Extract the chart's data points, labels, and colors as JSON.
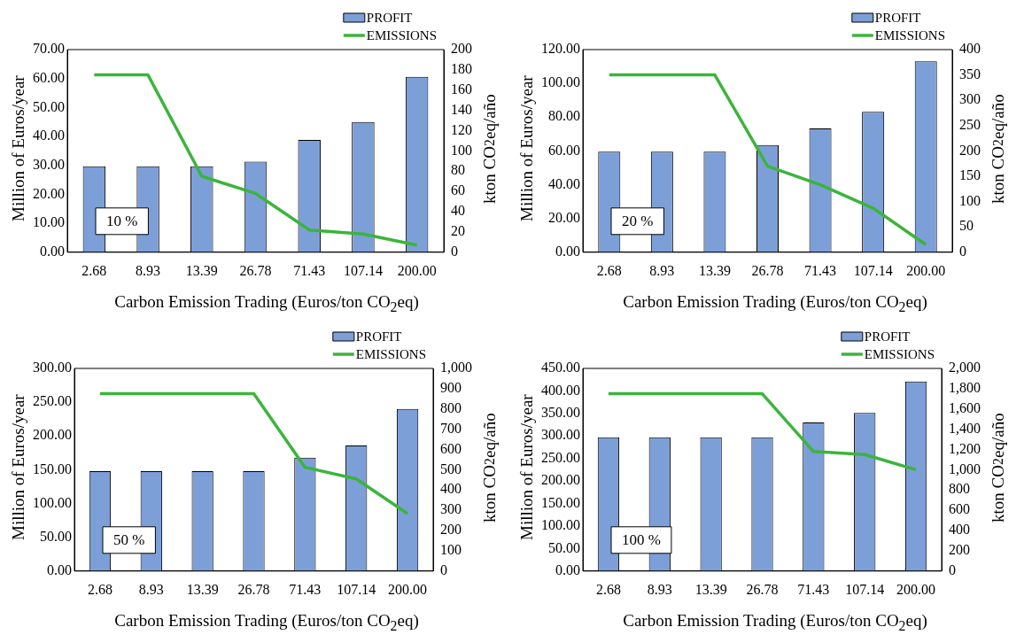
{
  "chart_data": [
    {
      "type": "bar",
      "categories": [
        "2.68",
        "8.93",
        "13.39",
        "26.78",
        "71.43",
        "107.14",
        "200.00"
      ],
      "xlabel": "Carbon Emission Trading (Euros/ton CO$_{2}$eq)",
      "ylabel": "Million of Euros/year",
      "y2label": "kton CO$_{2}$eq/año",
      "annotations": [
        "10 %"
      ],
      "series": [
        {
          "name": "PROFIT",
          "color": "#7d9fd8",
          "values": [
            29.7,
            29.7,
            29.7,
            31.3,
            38.8,
            45.0,
            60.6
          ]
        },
        {
          "name": "EMISSIONS",
          "type": "line",
          "axis": "y2",
          "color": "#3cb43c",
          "values": [
            175,
            175,
            75,
            58,
            22,
            18,
            7
          ]
        }
      ],
      "ylim": [
        0,
        70
      ],
      "yticks": [
        {
          "value": 0,
          "label": "0.00"
        },
        {
          "value": 10,
          "label": "10.00"
        },
        {
          "value": 20,
          "label": "20.00"
        },
        {
          "value": 30,
          "label": "30.00"
        },
        {
          "value": 40,
          "label": "40.00"
        },
        {
          "value": 50,
          "label": "50.00"
        },
        {
          "value": 60,
          "label": "60.00"
        },
        {
          "value": 70,
          "label": "70.00"
        }
      ],
      "y2lim": [
        0,
        200
      ],
      "y2ticks": [
        0,
        20,
        40,
        60,
        80,
        100,
        120,
        140,
        160,
        180,
        200
      ],
      "grid": false,
      "legend": "top right"
    },
    {
      "type": "bar",
      "categories": [
        "2.68",
        "8.93",
        "13.39",
        "26.78",
        "71.43",
        "107.14",
        "200.00"
      ],
      "xlabel": "Carbon Emission Trading (Euros/ton CO$_{2}$eq)",
      "ylabel": "Million of Euros/year",
      "y2label": "kton CO$^{2}$eq/año",
      "annotations": [
        "20 %"
      ],
      "series": [
        {
          "name": "PROFIT",
          "color": "#7d9fd8",
          "values": [
            59.5,
            59.5,
            59.5,
            63.5,
            73.3,
            83.2,
            113.0
          ]
        },
        {
          "name": "EMISSIONS",
          "type": "line",
          "axis": "y2",
          "color": "#3cb43c",
          "values": [
            350,
            350,
            350,
            170,
            133,
            87,
            15
          ]
        }
      ],
      "ylim": [
        0,
        120
      ],
      "yticks": [
        {
          "value": 0,
          "label": "0.00"
        },
        {
          "value": 20,
          "label": "20.00"
        },
        {
          "value": 40,
          "label": "40.00"
        },
        {
          "value": 60,
          "label": "60.00"
        },
        {
          "value": 80,
          "label": "80.00"
        },
        {
          "value": 100,
          "label": "100.00"
        },
        {
          "value": 120,
          "label": "120.00"
        }
      ],
      "y2lim": [
        0,
        400
      ],
      "y2ticks": [
        0,
        50,
        100,
        150,
        200,
        250,
        300,
        350,
        400
      ],
      "grid": false,
      "legend": "top right"
    },
    {
      "type": "bar",
      "categories": [
        "2.68",
        "8.93",
        "13.39",
        "26.78",
        "71.43",
        "107.14",
        "200.00"
      ],
      "xlabel": "Carbon Emission Trading (Euros/ton CO$_{2}$eq)",
      "ylabel": "Million of Euros/year",
      "y2label": "kton CO$_{2}$eq/año",
      "annotations": [
        "50 %"
      ],
      "series": [
        {
          "name": "PROFIT",
          "color": "#7d9fd8",
          "values": [
            148,
            148,
            148,
            148,
            168,
            186,
            240
          ]
        },
        {
          "name": "EMISSIONS",
          "type": "line",
          "axis": "y2",
          "color": "#3cb43c",
          "values": [
            875,
            875,
            875,
            875,
            512,
            455,
            283
          ]
        }
      ],
      "ylim": [
        0,
        300
      ],
      "yticks": [
        {
          "value": 0,
          "label": "0.00"
        },
        {
          "value": 50,
          "label": "50.00"
        },
        {
          "value": 100,
          "label": "100.00"
        },
        {
          "value": 150,
          "label": "150.00"
        },
        {
          "value": 200,
          "label": "200.00"
        },
        {
          "value": 250,
          "label": "250.00"
        },
        {
          "value": 300,
          "label": "300.00"
        }
      ],
      "y2lim": [
        0,
        1000
      ],
      "y2ticks": [
        0,
        100,
        200,
        300,
        400,
        500,
        600,
        700,
        800,
        900,
        {
          "value": 1000,
          "label": "1,000"
        }
      ],
      "grid": false,
      "legend": "top right"
    },
    {
      "type": "bar",
      "categories": [
        "2.68",
        "8.93",
        "13.39",
        "26.78",
        "71.43",
        "107.14",
        "200.00"
      ],
      "xlabel": "Carbon Emission Trading (Euros/ton CO$_{2}$eq)",
      "ylabel": "Million of Euros/year",
      "y2label": "kton CO$_{2}$eq/año",
      "annotations": [
        "100 %"
      ],
      "series": [
        {
          "name": "PROFIT",
          "color": "#7d9fd8",
          "values": [
            297,
            297,
            297,
            297,
            330,
            351,
            421
          ]
        },
        {
          "name": "EMISSIONS",
          "type": "line",
          "axis": "y2",
          "color": "#3cb43c",
          "values": [
            1750,
            1750,
            1750,
            1750,
            1180,
            1150,
            1000
          ]
        }
      ],
      "ylim": [
        0,
        450
      ],
      "yticks": [
        {
          "value": 0,
          "label": "0.00"
        },
        {
          "value": 50,
          "label": "50.00"
        },
        {
          "value": 100,
          "label": "100.00"
        },
        {
          "value": 150,
          "label": "150.00"
        },
        {
          "value": 200,
          "label": "200.00"
        },
        {
          "value": 250,
          "label": "250.00"
        },
        {
          "value": 300,
          "label": "300.00"
        },
        {
          "value": 350,
          "label": "350.00"
        },
        {
          "value": 400,
          "label": "400.00"
        },
        {
          "value": 450,
          "label": "450.00"
        }
      ],
      "y2lim": [
        0,
        2000
      ],
      "y2ticks": [
        0,
        200,
        400,
        600,
        800,
        {
          "value": 1000,
          "label": "1,000"
        },
        {
          "value": 1200,
          "label": "1,200"
        },
        {
          "value": 1400,
          "label": "1,400"
        },
        {
          "value": 1600,
          "label": "1,600"
        },
        {
          "value": 1800,
          "label": "1,800"
        },
        {
          "value": 2000,
          "label": "2,000"
        }
      ],
      "grid": false,
      "legend": "top right"
    }
  ]
}
